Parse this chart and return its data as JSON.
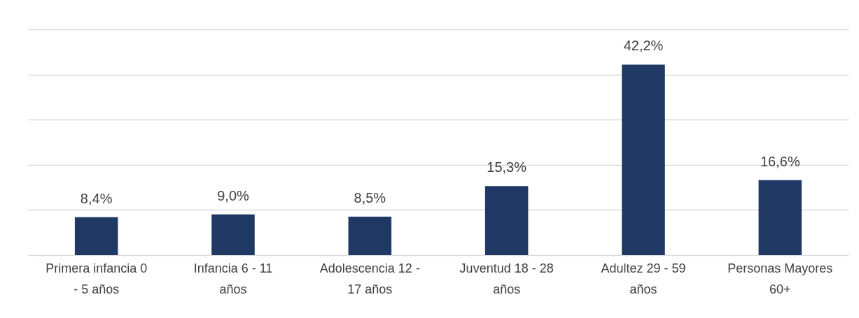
{
  "chart_data": {
    "type": "bar",
    "categories": [
      "Primera infancia 0 - 5 años",
      "Infancia 6 - 11 años",
      "Adolescencia 12 - 17 años",
      "Juventud 18 - 28 años",
      "Adultez 29 - 59 años",
      "Personas Mayores 60+"
    ],
    "values": [
      8.4,
      9.0,
      8.5,
      15.3,
      42.2,
      16.6
    ],
    "value_labels": [
      "8,4%",
      "9,0%",
      "8,5%",
      "15,3%",
      "42,2%",
      "16,6%"
    ],
    "color": "#203864",
    "ylim": [
      0,
      50
    ],
    "yticks": [
      0,
      10,
      20,
      30,
      40,
      50
    ],
    "tick_labels": "x",
    "grid": "y"
  }
}
